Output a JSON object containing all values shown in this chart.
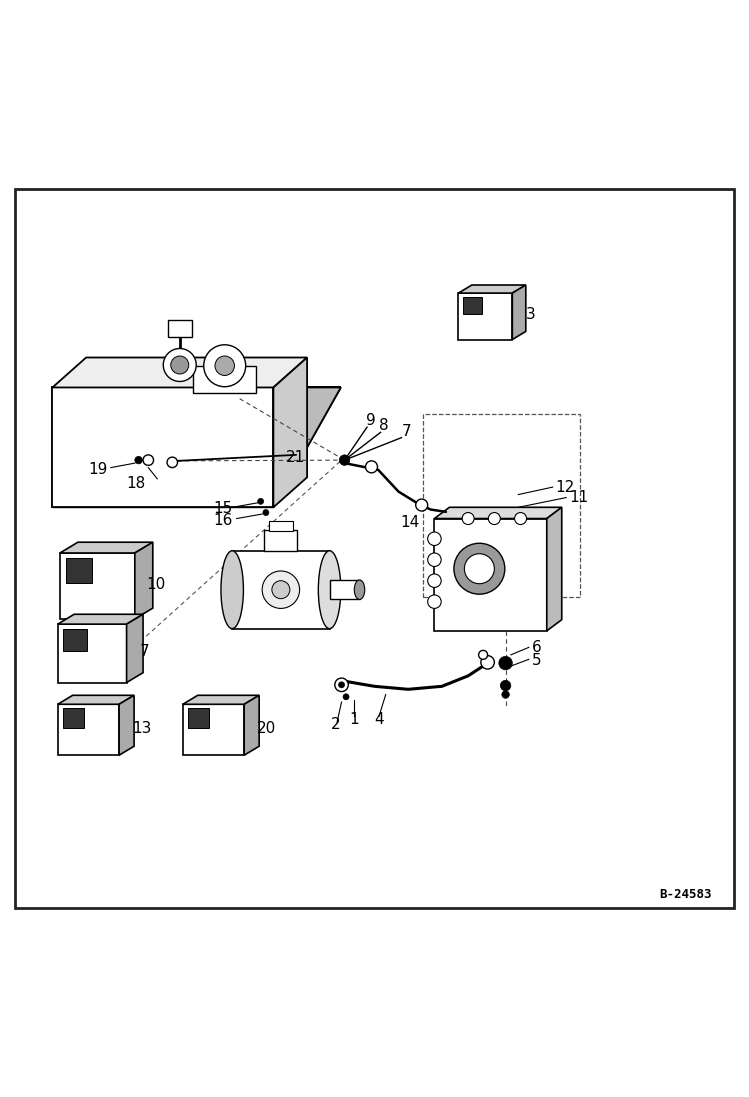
{
  "background_color": "#ffffff",
  "border_color": "#000000",
  "figure_id": "B-24583",
  "label_fontsize": 11,
  "figid_fontsize": 9,
  "line_color": "#222222",
  "dashed_color": "#555555"
}
